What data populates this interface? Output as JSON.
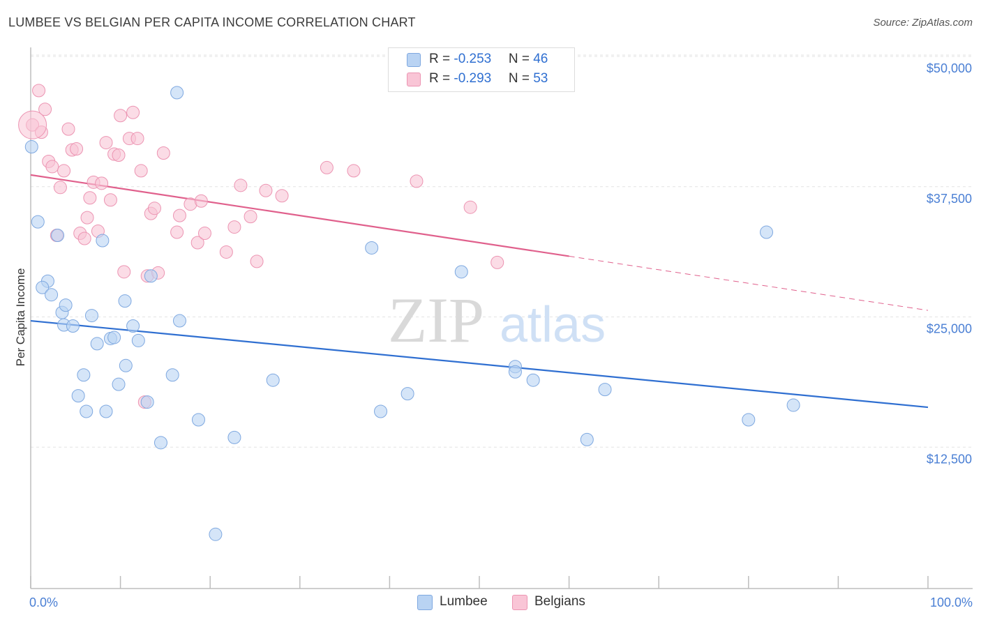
{
  "header": {
    "title": "LUMBEE VS BELGIAN PER CAPITA INCOME CORRELATION CHART",
    "source": "Source: ZipAtlas.com"
  },
  "watermark": {
    "zip": "ZIP",
    "atlas": "atlas"
  },
  "legend": {
    "lumbee": {
      "r_label": "R = ",
      "r_value": "-0.253",
      "n_label": "N = ",
      "n_value": "46"
    },
    "belgians": {
      "r_label": "R = ",
      "r_value": "-0.293",
      "n_label": "N = ",
      "n_value": "53"
    }
  },
  "bottom_legend": {
    "lumbee": "Lumbee",
    "belgians": "Belgians"
  },
  "colors": {
    "lumbee_fill": "#b9d3f3",
    "lumbee_stroke": "#7ea8e0",
    "lumbee_line": "#2f6fd1",
    "belgians_fill": "#f9c5d6",
    "belgians_stroke": "#ec94b2",
    "belgians_line": "#e0608c",
    "tick_text": "#4a7fd4",
    "grid": "#e3e3e3"
  },
  "chart_data": {
    "type": "scatter",
    "title": "LUMBEE VS BELGIAN PER CAPITA INCOME CORRELATION CHART",
    "ylabel": "Per Capita Income",
    "xlabel": "",
    "xlim": [
      0,
      100
    ],
    "ylim": [
      0,
      52000
    ],
    "x_tick_labels": [
      "0.0%",
      "100.0%"
    ],
    "y_ticks": [
      12500,
      25000,
      37500,
      50000
    ],
    "y_tick_labels": [
      "$12,500",
      "$25,000",
      "$37,500",
      "$50,000"
    ],
    "grid": true,
    "legend_position": "top-center",
    "series": [
      {
        "name": "Lumbee",
        "points": [
          [
            0.1,
            42400
          ],
          [
            0.8,
            35200
          ],
          [
            1.9,
            29500
          ],
          [
            1.3,
            28900
          ],
          [
            2.3,
            28200
          ],
          [
            3.0,
            33900
          ],
          [
            3.5,
            26500
          ],
          [
            3.9,
            27200
          ],
          [
            3.7,
            25300
          ],
          [
            4.7,
            25200
          ],
          [
            5.3,
            18500
          ],
          [
            5.9,
            20500
          ],
          [
            6.2,
            17000
          ],
          [
            6.8,
            26200
          ],
          [
            7.4,
            23500
          ],
          [
            8.0,
            33400
          ],
          [
            8.4,
            17000
          ],
          [
            8.9,
            24000
          ],
          [
            9.3,
            24100
          ],
          [
            9.8,
            19600
          ],
          [
            10.6,
            21400
          ],
          [
            10.5,
            27600
          ],
          [
            11.4,
            25200
          ],
          [
            12.0,
            23800
          ],
          [
            13.0,
            17900
          ],
          [
            13.4,
            30000
          ],
          [
            14.5,
            14000
          ],
          [
            15.8,
            20500
          ],
          [
            16.3,
            47600
          ],
          [
            16.6,
            25700
          ],
          [
            18.7,
            16200
          ],
          [
            20.6,
            5200
          ],
          [
            22.7,
            14500
          ],
          [
            27.0,
            20000
          ],
          [
            38.0,
            32700
          ],
          [
            39.0,
            17000
          ],
          [
            42.0,
            18700
          ],
          [
            48.0,
            30400
          ],
          [
            54.0,
            21300
          ],
          [
            54.0,
            20800
          ],
          [
            56.0,
            20000
          ],
          [
            62.0,
            14300
          ],
          [
            64.0,
            19100
          ],
          [
            80.0,
            16200
          ],
          [
            82.0,
            34200
          ],
          [
            85.0,
            17600
          ]
        ],
        "trend": {
          "x": [
            0,
            100
          ],
          "y": [
            25700,
            17400
          ]
        }
      },
      {
        "name": "Belgians",
        "points": [
          [
            0.2,
            44500
          ],
          [
            0.9,
            47800
          ],
          [
            1.2,
            43800
          ],
          [
            1.6,
            46000
          ],
          [
            2.0,
            41000
          ],
          [
            2.4,
            40500
          ],
          [
            2.9,
            33900
          ],
          [
            3.3,
            38500
          ],
          [
            3.7,
            40100
          ],
          [
            4.2,
            44100
          ],
          [
            4.6,
            42100
          ],
          [
            5.1,
            42200
          ],
          [
            5.5,
            34100
          ],
          [
            6.0,
            33600
          ],
          [
            6.3,
            35600
          ],
          [
            6.6,
            37500
          ],
          [
            7.0,
            39000
          ],
          [
            7.5,
            34300
          ],
          [
            7.9,
            38900
          ],
          [
            8.4,
            42800
          ],
          [
            8.9,
            37300
          ],
          [
            9.3,
            41700
          ],
          [
            9.8,
            41600
          ],
          [
            10.0,
            45400
          ],
          [
            10.4,
            30400
          ],
          [
            11.0,
            43200
          ],
          [
            11.4,
            45700
          ],
          [
            11.9,
            43200
          ],
          [
            12.3,
            40100
          ],
          [
            12.7,
            17900
          ],
          [
            13.0,
            30000
          ],
          [
            13.4,
            36000
          ],
          [
            13.8,
            36500
          ],
          [
            14.2,
            30300
          ],
          [
            14.8,
            41800
          ],
          [
            16.3,
            34200
          ],
          [
            16.6,
            35800
          ],
          [
            17.8,
            36900
          ],
          [
            18.6,
            33200
          ],
          [
            19.0,
            37200
          ],
          [
            19.4,
            34100
          ],
          [
            21.8,
            32300
          ],
          [
            22.7,
            34700
          ],
          [
            23.4,
            38700
          ],
          [
            24.5,
            35700
          ],
          [
            25.2,
            31400
          ],
          [
            26.2,
            38200
          ],
          [
            28.0,
            37700
          ],
          [
            33.0,
            40400
          ],
          [
            36.0,
            40100
          ],
          [
            43.0,
            39100
          ],
          [
            49.0,
            36600
          ],
          [
            52.0,
            31300
          ]
        ],
        "trend": {
          "x": [
            0,
            60
          ],
          "y": [
            39700,
            31900
          ]
        },
        "trend_dashed": {
          "x": [
            60,
            100
          ],
          "y": [
            31900,
            26700
          ]
        }
      }
    ]
  }
}
